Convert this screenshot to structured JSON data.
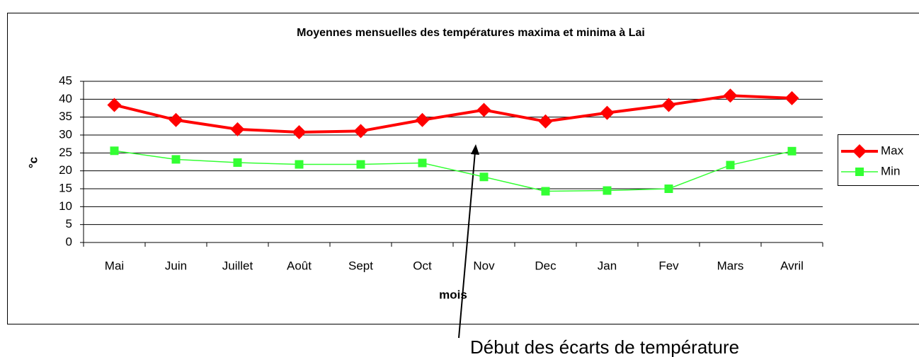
{
  "chart_data": {
    "type": "line",
    "title": "Moyennes mensuelles des températures maxima et minima à Lai",
    "x_label": "mois",
    "y_label": "°c",
    "annotation": "Début des écarts de température",
    "categories": [
      "Mai",
      "Juin",
      "Juillet",
      "Août",
      "Sept",
      "Oct",
      "Nov",
      "Dec",
      "Jan",
      "Fev",
      "Mars",
      "Avril"
    ],
    "series": [
      {
        "name": "Max",
        "color": "#ff0000",
        "marker": "diamond",
        "values": [
          38.4,
          34.2,
          31.6,
          30.8,
          31.1,
          34.2,
          37,
          33.8,
          36.2,
          38.4,
          41,
          40.3
        ]
      },
      {
        "name": "Min",
        "color": "#33ff33",
        "marker": "square",
        "values": [
          25.6,
          23.2,
          22.3,
          21.8,
          21.8,
          22.2,
          18.3,
          14.3,
          14.5,
          15.0,
          21.6,
          25.5
        ]
      }
    ],
    "ylim": [
      0,
      45
    ],
    "yticks": [
      0,
      5,
      10,
      15,
      20,
      25,
      30,
      35,
      40,
      45
    ],
    "grid": true,
    "legend": "right"
  }
}
